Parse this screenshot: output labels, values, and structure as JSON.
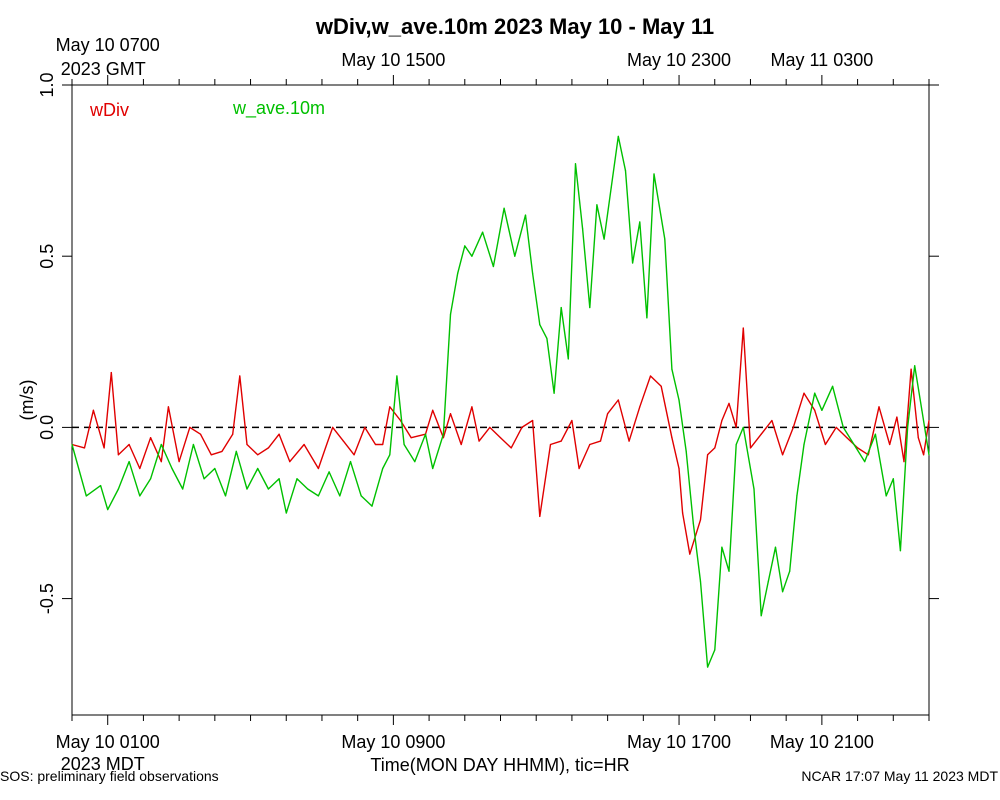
{
  "chart_data": {
    "type": "line",
    "title": "wDiv,w_ave.10m 2023 May 10 - May 11",
    "xlabel": "Time(MON DAY HHMM), tic=HR",
    "ylabel": "(m/s)",
    "ylim": [
      -0.84,
      1.0
    ],
    "x_range_hours": [
      -1,
      23
    ],
    "y_ticks": [
      {
        "value": 1.0,
        "label": "1.0"
      },
      {
        "value": 0.5,
        "label": "0.5"
      },
      {
        "value": 0.0,
        "label": "0.0"
      },
      {
        "value": -0.5,
        "label": "-0.5"
      }
    ],
    "bottom_ticks": [
      {
        "hour": 0,
        "label": "May 10 0100",
        "sub": "2023 MDT"
      },
      {
        "hour": 8,
        "label": "May 10 0900",
        "sub": ""
      },
      {
        "hour": 16,
        "label": "May 10 1700",
        "sub": ""
      },
      {
        "hour": 20,
        "label": "May 10 2100",
        "sub": ""
      }
    ],
    "top_ticks": [
      {
        "hour": 0,
        "label": "May 10 0700",
        "sub": "2023 GMT"
      },
      {
        "hour": 8,
        "label": "May 10 1500",
        "sub": ""
      },
      {
        "hour": 16,
        "label": "May 10 2300",
        "sub": ""
      },
      {
        "hour": 20,
        "label": "May 11 0300",
        "sub": ""
      }
    ],
    "reference_line": {
      "value": 0.0,
      "style": "dashed",
      "color": "#000000"
    },
    "series": [
      {
        "name": "wDiv",
        "color": "#e00000",
        "points": [
          [
            -1,
            -0.05
          ],
          [
            -0.65,
            -0.06
          ],
          [
            -0.4,
            0.05
          ],
          [
            -0.1,
            -0.06
          ],
          [
            0.1,
            0.16
          ],
          [
            0.3,
            -0.08
          ],
          [
            0.6,
            -0.05
          ],
          [
            0.9,
            -0.12
          ],
          [
            1.2,
            -0.03
          ],
          [
            1.5,
            -0.1
          ],
          [
            1.7,
            0.06
          ],
          [
            2,
            -0.1
          ],
          [
            2.3,
            0.0
          ],
          [
            2.6,
            -0.02
          ],
          [
            2.9,
            -0.08
          ],
          [
            3.2,
            -0.07
          ],
          [
            3.5,
            -0.02
          ],
          [
            3.7,
            0.15
          ],
          [
            3.9,
            -0.05
          ],
          [
            4.2,
            -0.08
          ],
          [
            4.5,
            -0.06
          ],
          [
            4.8,
            -0.02
          ],
          [
            5.1,
            -0.1
          ],
          [
            5.5,
            -0.05
          ],
          [
            5.9,
            -0.12
          ],
          [
            6.1,
            -0.06
          ],
          [
            6.3,
            0.0
          ],
          [
            6.6,
            -0.04
          ],
          [
            6.9,
            -0.08
          ],
          [
            7.2,
            0.0
          ],
          [
            7.5,
            -0.05
          ],
          [
            7.7,
            -0.05
          ],
          [
            7.9,
            0.06
          ],
          [
            8.2,
            0.02
          ],
          [
            8.5,
            -0.03
          ],
          [
            8.9,
            -0.02
          ],
          [
            9.1,
            0.05
          ],
          [
            9.4,
            -0.03
          ],
          [
            9.6,
            0.04
          ],
          [
            9.9,
            -0.05
          ],
          [
            10.2,
            0.06
          ],
          [
            10.4,
            -0.04
          ],
          [
            10.7,
            0.0
          ],
          [
            11.0,
            -0.03
          ],
          [
            11.3,
            -0.06
          ],
          [
            11.6,
            0.0
          ],
          [
            11.9,
            0.02
          ],
          [
            12.1,
            -0.26
          ],
          [
            12.4,
            -0.05
          ],
          [
            12.7,
            -0.04
          ],
          [
            13.0,
            0.02
          ],
          [
            13.2,
            -0.12
          ],
          [
            13.5,
            -0.05
          ],
          [
            13.8,
            -0.04
          ],
          [
            14.0,
            0.04
          ],
          [
            14.3,
            0.08
          ],
          [
            14.6,
            -0.04
          ],
          [
            14.9,
            0.06
          ],
          [
            15.2,
            0.15
          ],
          [
            15.5,
            0.12
          ],
          [
            15.8,
            -0.03
          ],
          [
            16.0,
            -0.12
          ],
          [
            16.1,
            -0.25
          ],
          [
            16.3,
            -0.37
          ],
          [
            16.6,
            -0.27
          ],
          [
            16.8,
            -0.08
          ],
          [
            17.0,
            -0.06
          ],
          [
            17.2,
            0.02
          ],
          [
            17.4,
            0.07
          ],
          [
            17.6,
            0.0
          ],
          [
            17.8,
            0.29
          ],
          [
            18.0,
            -0.06
          ],
          [
            18.3,
            -0.02
          ],
          [
            18.6,
            0.02
          ],
          [
            18.9,
            -0.08
          ],
          [
            19.2,
            0.0
          ],
          [
            19.5,
            0.1
          ],
          [
            19.8,
            0.05
          ],
          [
            20.1,
            -0.05
          ],
          [
            20.4,
            0.0
          ],
          [
            20.7,
            -0.03
          ],
          [
            21.0,
            -0.06
          ],
          [
            21.3,
            -0.08
          ],
          [
            21.6,
            0.06
          ],
          [
            21.9,
            -0.05
          ],
          [
            22.1,
            0.03
          ],
          [
            22.3,
            -0.1
          ],
          [
            22.5,
            0.17
          ],
          [
            22.7,
            -0.03
          ],
          [
            22.85,
            -0.08
          ],
          [
            23,
            0.02
          ]
        ]
      },
      {
        "name": "w_ave.10m",
        "color": "#00c000",
        "points": [
          [
            -1,
            -0.05
          ],
          [
            -0.6,
            -0.2
          ],
          [
            -0.2,
            -0.17
          ],
          [
            0.0,
            -0.24
          ],
          [
            0.3,
            -0.18
          ],
          [
            0.6,
            -0.1
          ],
          [
            0.9,
            -0.2
          ],
          [
            1.2,
            -0.15
          ],
          [
            1.5,
            -0.05
          ],
          [
            1.8,
            -0.12
          ],
          [
            2.1,
            -0.18
          ],
          [
            2.4,
            -0.05
          ],
          [
            2.7,
            -0.15
          ],
          [
            3.0,
            -0.12
          ],
          [
            3.3,
            -0.2
          ],
          [
            3.6,
            -0.07
          ],
          [
            3.9,
            -0.18
          ],
          [
            4.2,
            -0.12
          ],
          [
            4.5,
            -0.18
          ],
          [
            4.8,
            -0.15
          ],
          [
            5.0,
            -0.25
          ],
          [
            5.3,
            -0.15
          ],
          [
            5.6,
            -0.18
          ],
          [
            5.9,
            -0.2
          ],
          [
            6.2,
            -0.13
          ],
          [
            6.5,
            -0.2
          ],
          [
            6.8,
            -0.1
          ],
          [
            7.1,
            -0.2
          ],
          [
            7.4,
            -0.23
          ],
          [
            7.7,
            -0.12
          ],
          [
            7.9,
            -0.08
          ],
          [
            8.1,
            0.15
          ],
          [
            8.3,
            -0.05
          ],
          [
            8.6,
            -0.1
          ],
          [
            8.9,
            -0.02
          ],
          [
            9.1,
            -0.12
          ],
          [
            9.4,
            -0.02
          ],
          [
            9.6,
            0.33
          ],
          [
            9.8,
            0.45
          ],
          [
            10.0,
            0.53
          ],
          [
            10.2,
            0.5
          ],
          [
            10.5,
            0.57
          ],
          [
            10.8,
            0.47
          ],
          [
            11.1,
            0.64
          ],
          [
            11.4,
            0.5
          ],
          [
            11.7,
            0.62
          ],
          [
            11.9,
            0.45
          ],
          [
            12.1,
            0.3
          ],
          [
            12.3,
            0.26
          ],
          [
            12.5,
            0.1
          ],
          [
            12.7,
            0.35
          ],
          [
            12.9,
            0.2
          ],
          [
            13.1,
            0.77
          ],
          [
            13.3,
            0.58
          ],
          [
            13.5,
            0.35
          ],
          [
            13.7,
            0.65
          ],
          [
            13.9,
            0.55
          ],
          [
            14.1,
            0.7
          ],
          [
            14.3,
            0.85
          ],
          [
            14.5,
            0.75
          ],
          [
            14.7,
            0.48
          ],
          [
            14.9,
            0.6
          ],
          [
            15.1,
            0.32
          ],
          [
            15.3,
            0.74
          ],
          [
            15.6,
            0.55
          ],
          [
            15.8,
            0.17
          ],
          [
            16.0,
            0.08
          ],
          [
            16.2,
            -0.07
          ],
          [
            16.4,
            -0.28
          ],
          [
            16.6,
            -0.45
          ],
          [
            16.8,
            -0.7
          ],
          [
            17.0,
            -0.65
          ],
          [
            17.2,
            -0.35
          ],
          [
            17.4,
            -0.42
          ],
          [
            17.6,
            -0.05
          ],
          [
            17.8,
            0.0
          ],
          [
            18.1,
            -0.18
          ],
          [
            18.3,
            -0.55
          ],
          [
            18.5,
            -0.45
          ],
          [
            18.7,
            -0.35
          ],
          [
            18.9,
            -0.48
          ],
          [
            19.1,
            -0.42
          ],
          [
            19.3,
            -0.2
          ],
          [
            19.5,
            -0.05
          ],
          [
            19.8,
            0.1
          ],
          [
            20.0,
            0.05
          ],
          [
            20.3,
            0.12
          ],
          [
            20.6,
            0.0
          ],
          [
            20.9,
            -0.05
          ],
          [
            21.2,
            -0.1
          ],
          [
            21.5,
            -0.02
          ],
          [
            21.8,
            -0.2
          ],
          [
            22.0,
            -0.15
          ],
          [
            22.2,
            -0.36
          ],
          [
            22.4,
            0.0
          ],
          [
            22.6,
            0.18
          ],
          [
            22.8,
            0.05
          ],
          [
            23,
            -0.08
          ]
        ]
      }
    ],
    "legend": [
      {
        "label": "wDiv",
        "color": "#e00000"
      },
      {
        "label": "w_ave.10m",
        "color": "#00c000"
      }
    ]
  },
  "footer": {
    "left": "SOS: preliminary field observations",
    "right": "NCAR 17:07 May 11 2023 MDT"
  }
}
